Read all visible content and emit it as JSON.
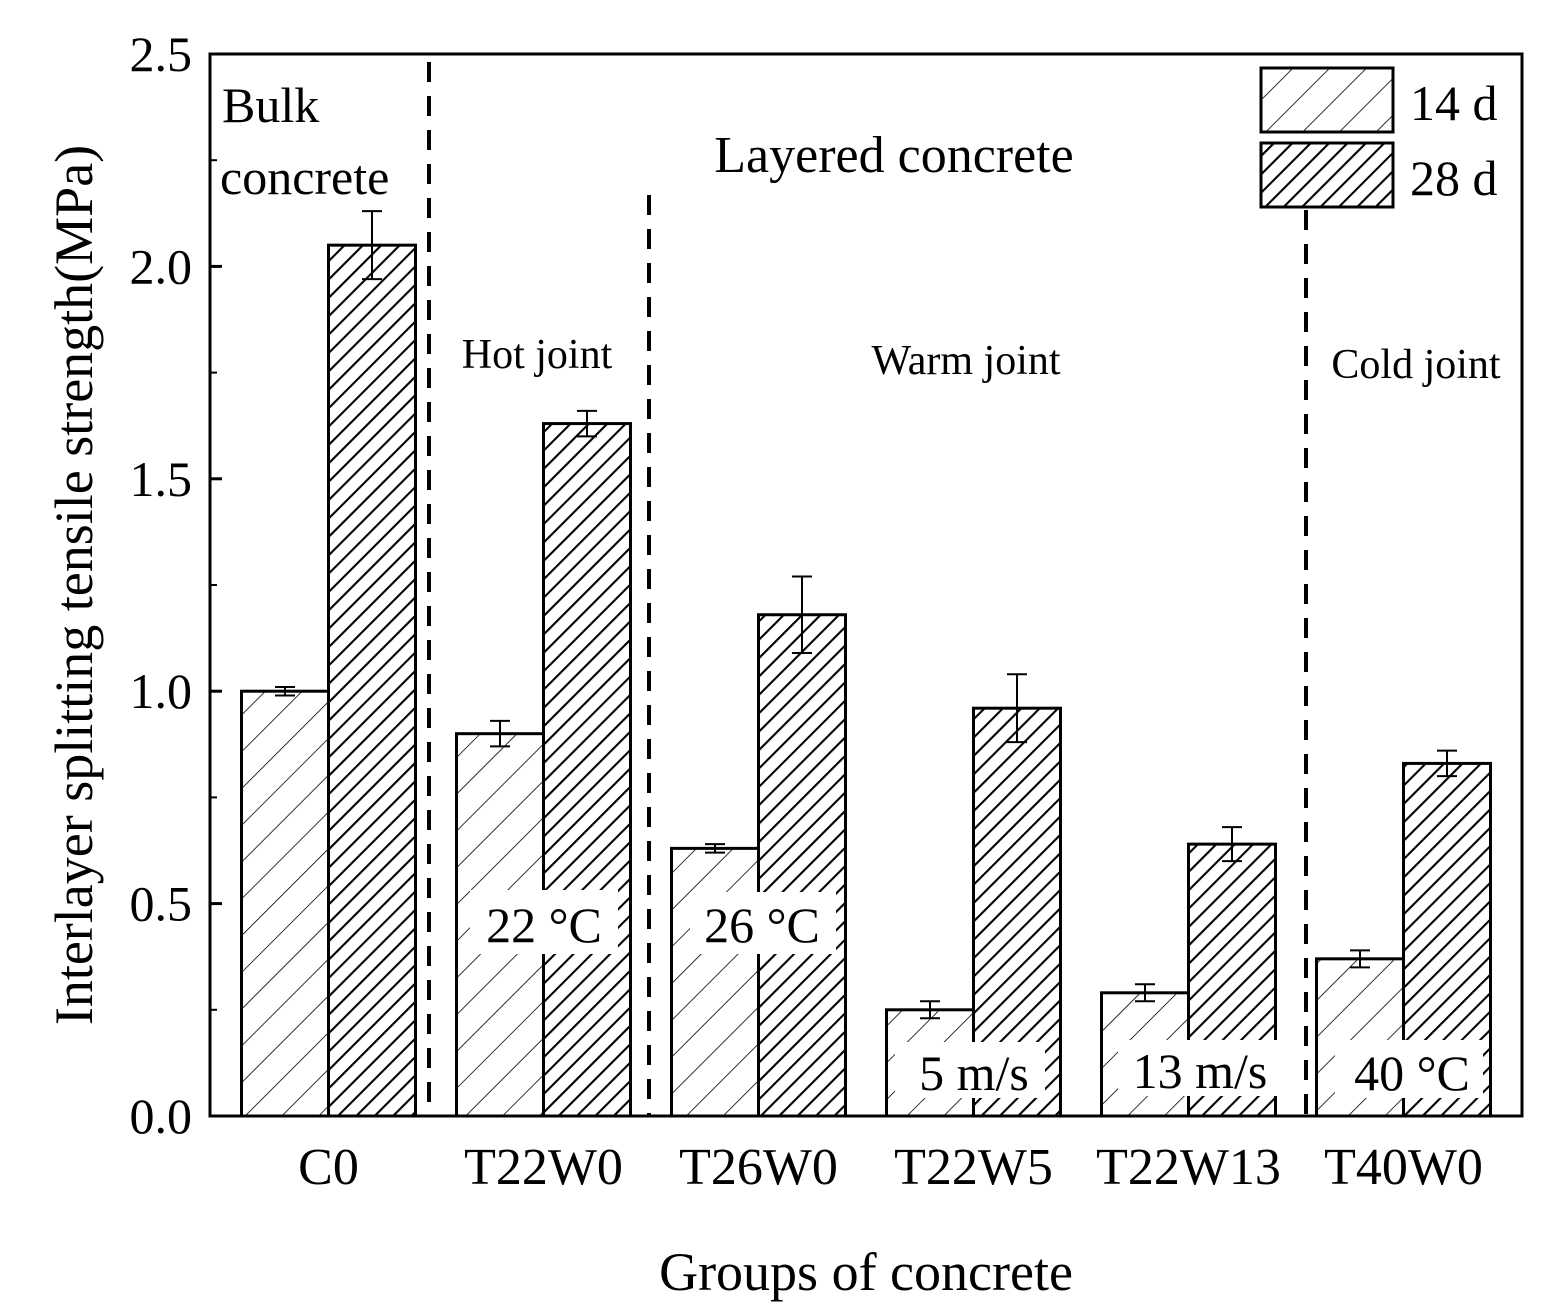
{
  "chart_data": {
    "type": "bar",
    "xlabel": "Groups of concrete",
    "ylabel": "Interlayer splitting tensile strength(MPa)",
    "ylim": [
      0,
      2.5
    ],
    "yticks": [
      0.0,
      0.5,
      1.0,
      1.5,
      2.0,
      2.5
    ],
    "ytick_labels": [
      "0.0",
      "0.5",
      "1.0",
      "1.5",
      "2.0",
      "2.5"
    ],
    "categories": [
      "C0",
      "T22W0",
      "T26W0",
      "T22W5",
      "T22W13",
      "T40W0"
    ],
    "series": [
      {
        "name": "14 d",
        "values": [
          1.0,
          0.9,
          0.63,
          0.25,
          0.29,
          0.37
        ],
        "errors": [
          0.01,
          0.03,
          0.01,
          0.02,
          0.02,
          0.02
        ]
      },
      {
        "name": "28 d",
        "values": [
          2.05,
          1.63,
          1.18,
          0.96,
          0.64,
          0.83
        ],
        "errors": [
          0.08,
          0.03,
          0.09,
          0.08,
          0.04,
          0.03
        ]
      }
    ],
    "legend_position": "top-right",
    "annotations": {
      "bulk_line1": "Bulk",
      "bulk_line2": "concrete",
      "layered": "Layered concrete",
      "hot_joint": "Hot joint",
      "warm_joint": "Warm joint",
      "cold_joint": "Cold joint",
      "bar_labels": [
        "22 °C",
        "26 °C",
        "5 m/s",
        "13 m/s",
        "40 °C"
      ]
    }
  }
}
